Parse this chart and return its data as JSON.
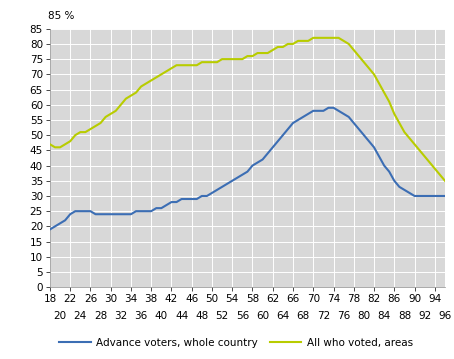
{
  "ages": [
    18,
    19,
    20,
    21,
    22,
    23,
    24,
    25,
    26,
    27,
    28,
    29,
    30,
    31,
    32,
    33,
    34,
    35,
    36,
    37,
    38,
    39,
    40,
    41,
    42,
    43,
    44,
    45,
    46,
    47,
    48,
    49,
    50,
    51,
    52,
    53,
    54,
    55,
    56,
    57,
    58,
    59,
    60,
    61,
    62,
    63,
    64,
    65,
    66,
    67,
    68,
    69,
    70,
    71,
    72,
    73,
    74,
    75,
    76,
    77,
    78,
    79,
    80,
    81,
    82,
    83,
    84,
    85,
    86,
    87,
    88,
    89,
    90,
    91,
    92,
    93,
    94,
    95,
    96
  ],
  "advance_voters": [
    19,
    20,
    21,
    22,
    24,
    25,
    25,
    25,
    25,
    24,
    24,
    24,
    24,
    24,
    24,
    24,
    24,
    25,
    25,
    25,
    25,
    26,
    26,
    27,
    28,
    28,
    29,
    29,
    29,
    29,
    30,
    30,
    31,
    32,
    33,
    34,
    35,
    36,
    37,
    38,
    40,
    41,
    42,
    44,
    46,
    48,
    50,
    52,
    54,
    55,
    56,
    57,
    58,
    58,
    58,
    59,
    59,
    58,
    57,
    56,
    54,
    52,
    50,
    48,
    46,
    43,
    40,
    38,
    35,
    33,
    32,
    31,
    30,
    30,
    30,
    30,
    30,
    30,
    30
  ],
  "all_voted": [
    47,
    46,
    46,
    47,
    48,
    50,
    51,
    51,
    52,
    53,
    54,
    56,
    57,
    58,
    60,
    62,
    63,
    64,
    66,
    67,
    68,
    69,
    70,
    71,
    72,
    73,
    73,
    73,
    73,
    73,
    74,
    74,
    74,
    74,
    75,
    75,
    75,
    75,
    75,
    76,
    76,
    77,
    77,
    77,
    78,
    79,
    79,
    80,
    80,
    81,
    81,
    81,
    82,
    82,
    82,
    82,
    82,
    82,
    81,
    80,
    78,
    76,
    74,
    72,
    70,
    67,
    64,
    61,
    57,
    54,
    51,
    49,
    47,
    45,
    43,
    41,
    39,
    37,
    35
  ],
  "advance_color": "#3c6eb4",
  "all_voted_color": "#b8cc00",
  "background_color": "#d8d8d8",
  "grid_color": "#ffffff",
  "ylim": [
    0,
    85
  ],
  "yticks": [
    0,
    5,
    10,
    15,
    20,
    25,
    30,
    35,
    40,
    45,
    50,
    55,
    60,
    65,
    70,
    75,
    80,
    85
  ],
  "xticks_row1": [
    18,
    22,
    26,
    30,
    34,
    38,
    42,
    46,
    50,
    54,
    58,
    62,
    66,
    70,
    74,
    78,
    82,
    86,
    90,
    94
  ],
  "xticks_row2": [
    20,
    24,
    28,
    32,
    36,
    40,
    44,
    48,
    52,
    56,
    60,
    64,
    68,
    72,
    76,
    80,
    84,
    88,
    92,
    96
  ],
  "xlim": [
    18,
    96
  ],
  "ylabel_text": "85 %",
  "legend_advance": "Advance voters, whole country",
  "legend_all": "All who voted, areas",
  "tick_fontsize": 7.5,
  "legend_fontsize": 7.5
}
